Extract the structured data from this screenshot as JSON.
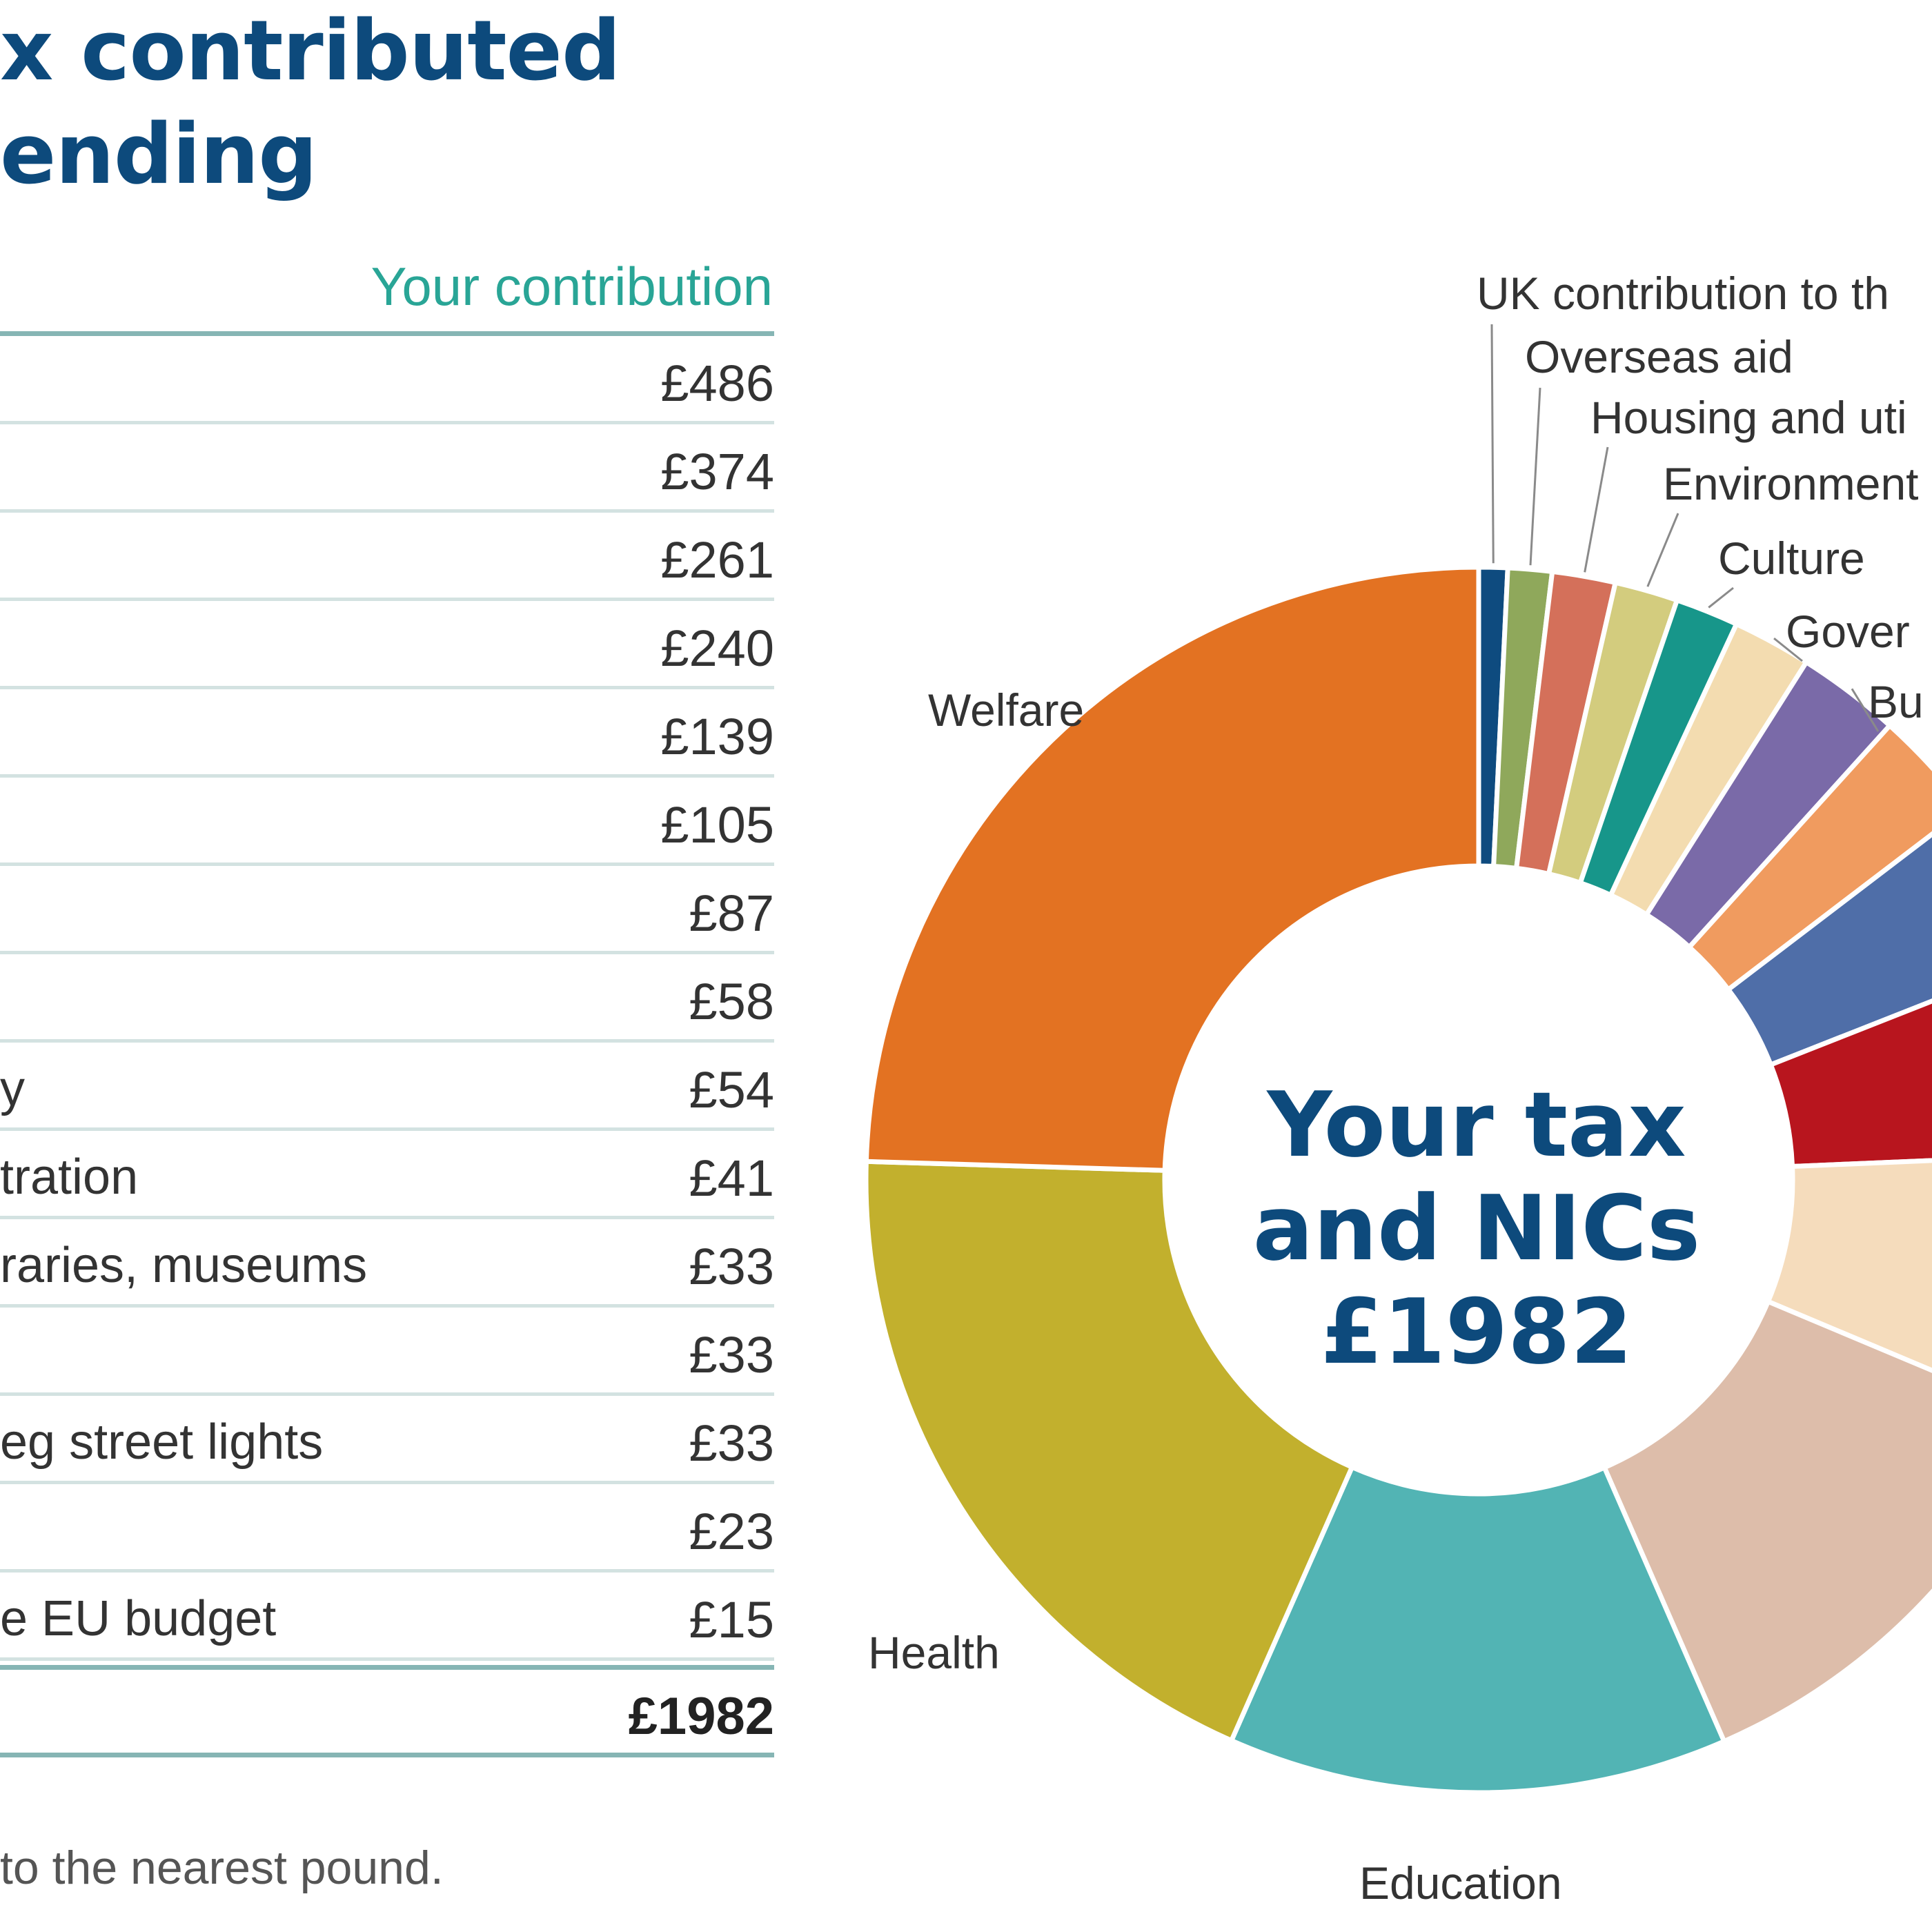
{
  "title_lines": [
    "x contributed",
    "ending"
  ],
  "contribution_header": "Your contribution",
  "rows": [
    {
      "label": "",
      "value": "£486"
    },
    {
      "label": "",
      "value": "£374"
    },
    {
      "label": "",
      "value": "£261"
    },
    {
      "label": "",
      "value": "£240"
    },
    {
      "label": "",
      "value": "£139"
    },
    {
      "label": "",
      "value": "£105"
    },
    {
      "label": "",
      "value": "£87"
    },
    {
      "label": "",
      "value": "£58"
    },
    {
      "label": "y",
      "value": "£54"
    },
    {
      "label": "tration",
      "value": "£41"
    },
    {
      "label": "raries, museums",
      "value": "£33"
    },
    {
      "label": "",
      "value": "£33"
    },
    {
      "label": "eg street lights",
      "value": "£33"
    },
    {
      "label": "",
      "value": "£23"
    },
    {
      "label": "e EU budget",
      "value": "£15"
    }
  ],
  "total": "£1982",
  "footnote": "to the nearest pound.",
  "center": {
    "line1": "Your tax",
    "line2": "and NICs",
    "line3": "£1982"
  },
  "chart_data": {
    "type": "pie",
    "style": "donut",
    "title": "",
    "center_label": "Your tax and NICs £1982",
    "unit": "£",
    "order": "clockwise from 12 o'clock",
    "slices": [
      {
        "label": "UK contribution to th",
        "value": 15,
        "color": "#0e4b7f"
      },
      {
        "label": "Overseas aid",
        "value": 23,
        "color": "#8fa85b"
      },
      {
        "label": "Housing and uti",
        "value": 33,
        "color": "#d4705a"
      },
      {
        "label": "Environment",
        "value": 33,
        "color": "#d3cc7e"
      },
      {
        "label": "Culture",
        "value": 33,
        "color": "#17968a"
      },
      {
        "label": "Gover",
        "value": 41,
        "color": "#f3dcb0"
      },
      {
        "label": "Bu",
        "value": 54,
        "color": "#7a6aa8"
      },
      {
        "label": "",
        "value": 58,
        "color": "#f09b5f"
      },
      {
        "label": "",
        "value": 87,
        "color": "#4f6ea8"
      },
      {
        "label": "",
        "value": 105,
        "color": "#b8151e"
      },
      {
        "label": "",
        "value": 139,
        "color": "#f5dcbc"
      },
      {
        "label": "",
        "value": 240,
        "color": "#ddbdaa"
      },
      {
        "label": "Education",
        "value": 261,
        "color": "#52b4b4"
      },
      {
        "label": "Health",
        "value": 374,
        "color": "#c2b02d"
      },
      {
        "label": "Welfare",
        "value": 486,
        "color": "#e37222"
      }
    ]
  }
}
